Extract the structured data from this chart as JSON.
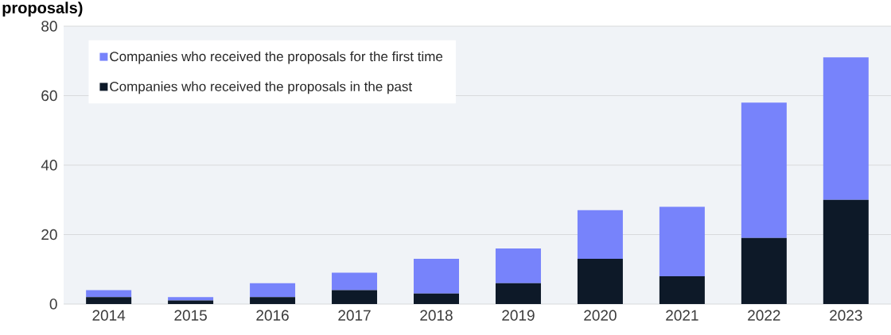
{
  "chart_data": {
    "type": "bar",
    "title": "proposals)",
    "stacked": true,
    "categories": [
      "2014",
      "2015",
      "2016",
      "2017",
      "2018",
      "2019",
      "2020",
      "2021",
      "2022",
      "2023"
    ],
    "series": [
      {
        "name": "Companies who received the proposals in the past",
        "color": "#0d1928",
        "values": [
          2,
          1,
          2,
          4,
          3,
          6,
          13,
          8,
          19,
          30
        ]
      },
      {
        "name": "Companies who received the proposals for the first time",
        "color": "#7783fb",
        "values": [
          2,
          1,
          4,
          5,
          10,
          10,
          14,
          20,
          39,
          41
        ]
      }
    ],
    "ylim": [
      0,
      80
    ],
    "yticks": [
      0,
      20,
      40,
      60,
      80
    ],
    "grid": "y",
    "legend": "top left"
  }
}
